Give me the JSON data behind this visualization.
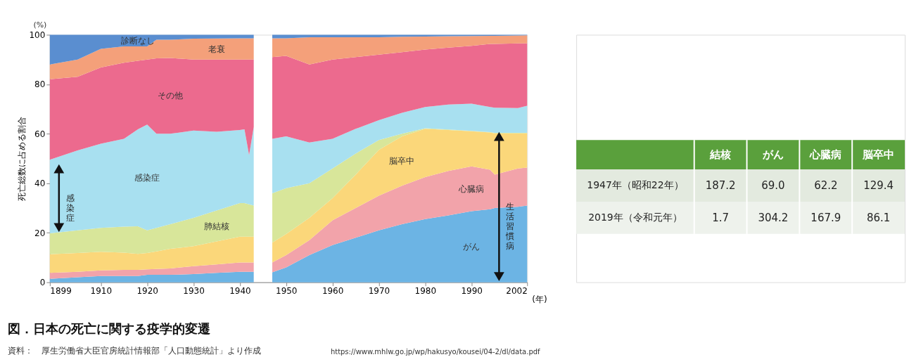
{
  "chart_data": [
    {
      "type": "area",
      "stacked": true,
      "title": "図．日本の死亡に関する疫学的変遷",
      "ylabel": "死亡総数に占める割合",
      "xlabel": "(年)",
      "x": [
        1899,
        1905,
        1910,
        1915,
        1918,
        1920,
        1922,
        1925,
        1930,
        1935,
        1940,
        1941,
        1942,
        1943,
        1945,
        1947,
        1950,
        1955,
        1960,
        1965,
        1970,
        1975,
        1980,
        1985,
        1990,
        1994,
        1995,
        2000,
        2002
      ],
      "xlim": [
        1899,
        2002
      ],
      "xticks": [
        1899,
        1910,
        1920,
        1930,
        1940,
        1950,
        1960,
        1970,
        1980,
        1990,
        2002
      ],
      "ylim": [
        0,
        100
      ],
      "yticks": [
        0,
        20,
        40,
        60,
        80,
        100
      ],
      "series": [
        {
          "name": "がん",
          "color": "#6cb4e4",
          "values": [
            1.4,
            2,
            2.5,
            2.5,
            2.5,
            3,
            3,
            3,
            3.3,
            3.8,
            4.2,
            4.2,
            4.2,
            4.2,
            null,
            4,
            6,
            11,
            15,
            18,
            21,
            23.5,
            25.5,
            27,
            28.7,
            29.5,
            30,
            30.5,
            31
          ]
        },
        {
          "name": "心臓病",
          "color": "#f2a3aa",
          "values": [
            2.4,
            2.2,
            2.3,
            2.5,
            2.5,
            2.2,
            2.4,
            2.6,
            3.2,
            3.4,
            3.8,
            3.8,
            3.8,
            3.8,
            null,
            4,
            5,
            6,
            10,
            12,
            14,
            15.5,
            17,
            18,
            18.1,
            16,
            13.5,
            15.5,
            15.3
          ]
        },
        {
          "name": "脳卒中",
          "color": "#fbd77a",
          "values": [
            7.5,
            7.6,
            7.5,
            7,
            6.5,
            6.6,
            7.1,
            7.9,
            8.1,
            9.3,
            10.4,
            10.4,
            10.4,
            10.4,
            null,
            8,
            8.5,
            9,
            9,
            13.5,
            18.5,
            20,
            19.5,
            16.5,
            14.2,
            15,
            16.7,
            14.2,
            13.9
          ]
        },
        {
          "name": "肺結核",
          "color": "#d8e69a",
          "values": [
            8.5,
            9.2,
            9.7,
            10.5,
            11.1,
            9.2,
            9.5,
            10,
            11.4,
            12.5,
            13.6,
            13.6,
            13.1,
            12.6,
            null,
            20,
            18.5,
            14,
            12,
            8.5,
            4,
            1,
            0.2,
            0.2,
            0.2,
            0.2,
            0.2,
            0.2,
            0.2
          ]
        },
        {
          "name": "感染症",
          "color": "#a8e0f0",
          "values": [
            29.7,
            32.3,
            34,
            35.5,
            39.2,
            42.7,
            38,
            36.5,
            35.3,
            31.8,
            29.5,
            29.8,
            19.9,
            31.7,
            null,
            22,
            21,
            16.5,
            12,
            10,
            8,
            8.5,
            8.6,
            10.1,
            11,
            10.1,
            10.1,
            10,
            10.9
          ]
        },
        {
          "name": "その他",
          "color": "#ec6a8e",
          "values": [
            32.5,
            29.7,
            30.8,
            30.7,
            27.7,
            26.3,
            30.5,
            30.6,
            28.7,
            29.2,
            28.5,
            28.2,
            38.6,
            27.3,
            null,
            33,
            32.5,
            31.5,
            32,
            29,
            26.5,
            24.5,
            23.2,
            23,
            23.3,
            25.5,
            25.8,
            26.1,
            25.2
          ]
        },
        {
          "name": "老衰",
          "color": "#f4a07a",
          "values": [
            6,
            7,
            7.5,
            6.6,
            5.8,
            5.3,
            7.5,
            7.4,
            8.4,
            8.5,
            8.6,
            8.6,
            8.6,
            8.6,
            null,
            7.6,
            7.1,
            11,
            9,
            8,
            7,
            6.2,
            5.3,
            4.6,
            4,
            3.3,
            3.3,
            3.2,
            3.3
          ]
        },
        {
          "name": "診断なし",
          "color": "#5a8ed0",
          "values": [
            12,
            10,
            5.7,
            4.7,
            4.7,
            4.7,
            2,
            2,
            1.6,
            1.5,
            1.4,
            1.4,
            1.4,
            1.4,
            null,
            1.4,
            1.4,
            1,
            1,
            1,
            1,
            0.8,
            0.7,
            0.6,
            0.5,
            0.4,
            0.4,
            0.3,
            0.2
          ]
        }
      ],
      "annotations": [
        "(%)",
        "感染症",
        "生活習慣病",
        "資料：　厚生労働省大臣官房統計情報部「人口動態統計」より作成",
        "https://www.mhlw.go.jp/wp/hakusyo/kousei/04-2/dl/data.pdf"
      ]
    },
    {
      "type": "heatmap",
      "data_labels": true,
      "categories": [
        "結核",
        "がん",
        "心臓病",
        "脳卒中"
      ],
      "y_categories": [
        "1947年（昭和22年）",
        "2019年（令和元年）"
      ],
      "cells": [
        [
          187.2,
          69.0,
          62.2,
          129.4
        ],
        [
          1.7,
          304.2,
          167.9,
          86.1
        ]
      ],
      "cell_labels": [
        [
          "187.2",
          "69.0",
          "62.2",
          "129.4"
        ],
        [
          "1.7",
          "304.2",
          "167.9",
          "86.1"
        ]
      ]
    }
  ]
}
